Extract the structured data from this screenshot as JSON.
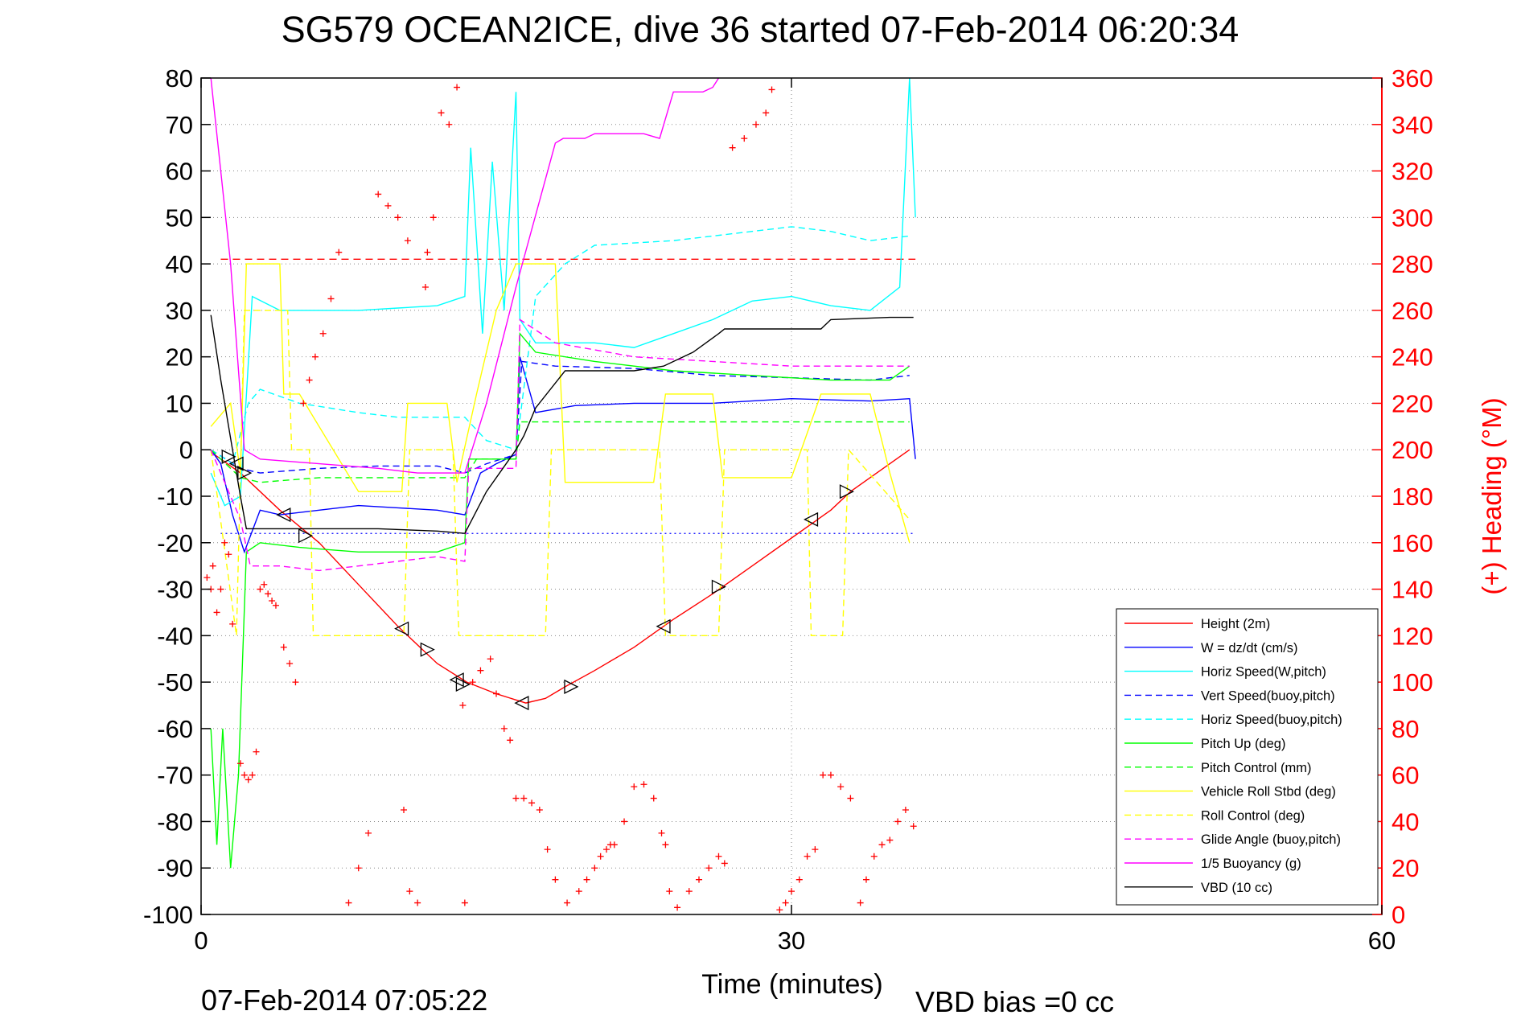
{
  "chart_data": {
    "type": "line",
    "title": "SG579 OCEAN2ICE, dive 36 started 07-Feb-2014 06:20:34",
    "xlabel": "Time (minutes)",
    "ylabel": "",
    "y2label": "(+) Heading (°M)",
    "xlim": [
      0,
      60
    ],
    "ylim": [
      -100,
      80
    ],
    "y2lim": [
      0,
      360
    ],
    "xticks": [
      "0",
      "30",
      "60"
    ],
    "yticks": [
      "80",
      "70",
      "60",
      "50",
      "40",
      "30",
      "20",
      "10",
      "0",
      "-10",
      "-20",
      "-30",
      "-40",
      "-50",
      "-60",
      "-70",
      "-80",
      "-90",
      "-100"
    ],
    "y2ticks": [
      "360",
      "340",
      "320",
      "300",
      "280",
      "260",
      "240",
      "220",
      "200",
      "180",
      "160",
      "140",
      "120",
      "100",
      "80",
      "60",
      "40",
      "20",
      "0"
    ],
    "grid": true,
    "legend_position": "bottom-right",
    "footer_left": "07-Feb-2014 07:05:22",
    "footer_right": "VBD bias =0 cc",
    "reference_lines": [
      {
        "name": "",
        "y": 41,
        "color": "#ff0000",
        "style": "dashed"
      },
      {
        "name": "",
        "y": -18,
        "color": "#0000ff",
        "style": "dotted"
      }
    ],
    "series": [
      {
        "name": "Height (2m)",
        "color": "#ff0000",
        "style": "solid",
        "x": [
          0.5,
          2,
          4,
          6,
          8,
          10,
          12,
          13.5,
          15,
          16.5,
          17.5,
          18.5,
          20,
          22,
          24,
          26,
          28,
          30,
          32,
          33,
          36
        ],
        "y": [
          -0.5,
          -5,
          -13,
          -20,
          -29,
          -38,
          -46,
          -50,
          -52.5,
          -54.5,
          -53.5,
          -51,
          -47.5,
          -42.5,
          -36.5,
          -31,
          -25,
          -19,
          -13,
          -9,
          0
        ]
      },
      {
        "name": "W = dz/dt (cm/s)",
        "color": "#0000ff",
        "style": "solid",
        "x": [
          0.5,
          1,
          1.6,
          2.2,
          3,
          4,
          6,
          8,
          10,
          12,
          13.4,
          14.2,
          15,
          16,
          16.2,
          17,
          19,
          22,
          26,
          30,
          34,
          36,
          36.3
        ],
        "y": [
          0,
          -3,
          -14,
          -22,
          -13,
          -14,
          -13,
          -12,
          -12.5,
          -13,
          -14,
          -5,
          -3,
          -1,
          20,
          8,
          9.5,
          10,
          10,
          11,
          10.5,
          11,
          -2
        ]
      },
      {
        "name": "Horiz Speed(W,pitch)",
        "color": "#00ffff",
        "style": "solid",
        "x": [
          0.5,
          1.2,
          2,
          2.6,
          4,
          6,
          8,
          10,
          12,
          13.4,
          13.7,
          14.3,
          14.8,
          15.4,
          16,
          16.2,
          17,
          20,
          22,
          24,
          26,
          28,
          30,
          32,
          34,
          35.5,
          36,
          36.3
        ],
        "y": [
          -5,
          -12,
          -10,
          33,
          30,
          30,
          30,
          30.5,
          31,
          33,
          65,
          25,
          62,
          30,
          77,
          28,
          23,
          23,
          22,
          25,
          28,
          32,
          33,
          31,
          30,
          35,
          80,
          50
        ]
      },
      {
        "name": "Vert Speed(buoy,pitch)",
        "color": "#0000ff",
        "style": "dashed",
        "x": [
          0.5,
          2,
          3,
          6,
          9,
          12,
          13.4,
          14.5,
          16,
          16.3,
          18,
          22,
          26,
          30,
          34,
          36
        ],
        "y": [
          0,
          -4,
          -5,
          -4,
          -3.5,
          -3.5,
          -5,
          -3,
          -1,
          19,
          18,
          17.5,
          16,
          15.5,
          15,
          16
        ]
      },
      {
        "name": "Horiz Speed(buoy,pitch)",
        "color": "#00ffff",
        "style": "dashed",
        "x": [
          0.5,
          1.6,
          2.4,
          3,
          5,
          8,
          10,
          12,
          13.4,
          14.5,
          16,
          17,
          18.5,
          20,
          24,
          28,
          30,
          32,
          34,
          36
        ],
        "y": [
          0,
          -3,
          10,
          13,
          10,
          8,
          7,
          7,
          7,
          2,
          0,
          33,
          40,
          44,
          45,
          47,
          48,
          47,
          45,
          46
        ]
      },
      {
        "name": "Pitch Up (deg)",
        "color": "#00ff00",
        "style": "solid",
        "x": [
          0.5,
          0.8,
          1.1,
          1.5,
          1.9,
          2.3,
          3,
          5,
          8,
          10,
          12,
          13.4,
          13.6,
          14.5,
          16,
          16.2,
          17,
          20,
          24,
          28,
          32,
          35,
          36
        ],
        "y": [
          -60,
          -85,
          -60,
          -90,
          -70,
          -22,
          -20,
          -21,
          -22,
          -22,
          -22,
          -20,
          -2,
          -2,
          -2,
          25,
          21,
          19,
          17,
          16,
          15,
          15,
          18
        ]
      },
      {
        "name": "Pitch Control (mm)",
        "color": "#00ff00",
        "style": "dashed",
        "x": [
          0.5,
          2,
          3,
          6,
          9,
          12,
          13.4,
          14,
          16,
          16.2,
          20,
          24,
          28,
          32,
          36
        ],
        "y": [
          0,
          -6,
          -7,
          -6,
          -6,
          -6,
          -6,
          -2,
          -2,
          6,
          6,
          6,
          6,
          6,
          6
        ]
      },
      {
        "name": "Vehicle Roll Stbd (deg)",
        "color": "#ffff00",
        "style": "solid",
        "x": [
          0.5,
          1.5,
          2,
          2.3,
          4,
          4.2,
          5,
          8,
          10.2,
          10.5,
          11,
          12.5,
          13,
          14,
          15,
          16,
          18,
          18.5,
          23,
          23.6,
          26,
          26.5,
          30,
          31.5,
          34,
          35,
          36
        ],
        "y": [
          5,
          10,
          -5,
          40,
          40,
          12,
          12,
          -9,
          -9,
          10,
          10,
          10,
          -7,
          12,
          30,
          40,
          40,
          -7,
          -7,
          12,
          12,
          -6,
          -6,
          12,
          12,
          -5,
          -20
        ]
      },
      {
        "name": "Roll Control (deg)",
        "color": "#ffff00",
        "style": "dashed",
        "x": [
          0.5,
          1.8,
          2.2,
          4.4,
          4.6,
          5.5,
          5.7,
          10.3,
          10.6,
          12.8,
          13.1,
          17.5,
          17.8,
          23.3,
          23.6,
          26.3,
          26.6,
          30.8,
          31,
          32.6,
          32.9,
          36
        ],
        "y": [
          0,
          -40,
          30,
          30,
          0,
          0,
          -40,
          -40,
          0,
          0,
          -40,
          -40,
          0,
          0,
          -40,
          -40,
          0,
          0,
          -40,
          -40,
          0,
          -15
        ]
      },
      {
        "name": "Glide Angle (buoy,pitch)",
        "color": "#ff00ff",
        "style": "dashed",
        "x": [
          0.5,
          2,
          2.5,
          4,
          6,
          8,
          10,
          12,
          13.4,
          13.6,
          16,
          16.2,
          18,
          22,
          26,
          30,
          34,
          36
        ],
        "y": [
          0,
          -15,
          -25,
          -25,
          -26,
          -25,
          -24,
          -23,
          -24,
          -4,
          -4,
          28,
          23,
          20,
          19,
          18,
          18,
          18
        ]
      },
      {
        "name": "1/5 Buoyancy (g)",
        "color": "#ff00ff",
        "style": "solid",
        "x": [
          0.5,
          1.5,
          2.2,
          3,
          6,
          9,
          11,
          12.5,
          13.4,
          14.5,
          16,
          18,
          18.4,
          19.5,
          20,
          22.5,
          23.3,
          24,
          25.5,
          26,
          26.3
        ],
        "y": [
          80,
          40,
          0,
          -2,
          -3,
          -4,
          -5,
          -5,
          -5,
          10,
          35,
          66,
          67,
          67,
          68,
          68,
          67,
          77,
          77,
          78,
          80
        ]
      },
      {
        "name": "VBD (10 cc)",
        "color": "#000000",
        "style": "solid",
        "x": [
          0.5,
          1,
          1.6,
          2,
          2.3,
          3,
          6,
          9,
          12,
          13.4,
          14.5,
          16,
          16.4,
          17,
          18.5,
          19,
          22,
          23.5,
          25,
          26.3,
          26.6,
          29,
          31.5,
          32,
          35,
          36.2
        ],
        "y": [
          29,
          15,
          0,
          -10,
          -17,
          -17,
          -17,
          -17,
          -17.5,
          -18,
          -9,
          0,
          3,
          9,
          17,
          17,
          17,
          18,
          21,
          25,
          26,
          26,
          26,
          28,
          28.5,
          28.5
        ]
      },
      {
        "name": "",
        "color": "#ff0000",
        "style": "marker-plus",
        "axis": "y2",
        "x": [
          0.3,
          0.5,
          0.6,
          0.8,
          1.0,
          1.2,
          1.4,
          1.6,
          2.0,
          2.2,
          2.4,
          2.6,
          2.8,
          3.0,
          3.2,
          3.4,
          3.6,
          3.8,
          4.2,
          4.5,
          4.8,
          5.2,
          5.5,
          5.8,
          6.2,
          6.6,
          7.0,
          7.5,
          8.0,
          8.5,
          9.0,
          9.5,
          10.0,
          10.5,
          10.3,
          10.6,
          11.0,
          11.4,
          11.5,
          11.8,
          12.2,
          12.6,
          13.0,
          13.4,
          13.3,
          13.8,
          14.2,
          14.7,
          15.0,
          15.4,
          15.7,
          16.0,
          16.4,
          16.8,
          17.2,
          17.6,
          18.0,
          18.6,
          19.2,
          19.6,
          20.0,
          20.3,
          20.6,
          20.8,
          21.0,
          21.5,
          22.0,
          22.5,
          23.0,
          23.4,
          23.6,
          23.8,
          24.2,
          24.8,
          25.3,
          25.8,
          26.3,
          26.6,
          27.0,
          27.6,
          28.2,
          28.7,
          29.0,
          29.4,
          29.7,
          30.0,
          30.4,
          30.8,
          31.2,
          31.6,
          32.0,
          32.5,
          33.0,
          33.5,
          33.8,
          34.2,
          34.6,
          35.0,
          35.4,
          35.8,
          36.2
        ],
        "y": [
          145,
          140,
          150,
          130,
          140,
          160,
          155,
          125,
          65,
          60,
          58,
          60,
          70,
          140,
          142,
          138,
          135,
          133,
          115,
          108,
          100,
          220,
          230,
          240,
          250,
          265,
          285,
          5,
          20,
          35,
          310,
          305,
          300,
          290,
          45,
          10,
          5,
          270,
          285,
          300,
          345,
          340,
          356,
          5,
          90,
          100,
          105,
          110,
          95,
          80,
          75,
          50,
          50,
          48,
          45,
          28,
          15,
          5,
          10,
          15,
          20,
          25,
          28,
          30,
          30,
          40,
          55,
          56,
          50,
          35,
          30,
          10,
          3,
          10,
          15,
          20,
          25,
          22,
          330,
          334,
          340,
          345,
          355,
          2,
          5,
          10,
          15,
          25,
          28,
          60,
          60,
          55,
          50,
          5,
          15,
          25,
          30,
          32,
          40,
          45,
          38
        ]
      }
    ],
    "markers": {
      "name": "",
      "style": "triangles",
      "x": [
        1.4,
        1.8,
        2.2,
        4.2,
        5.3,
        10.2,
        11.5,
        13.0,
        13.3,
        16.3,
        18.8,
        23.5,
        26.3,
        31.0,
        32.8
      ],
      "y": [
        -1.5,
        -3,
        -5,
        -14,
        -18.5,
        -38.5,
        -43,
        -49.5,
        -50.5,
        -54.5,
        -51,
        -38,
        -29.5,
        -15,
        -9
      ]
    }
  }
}
